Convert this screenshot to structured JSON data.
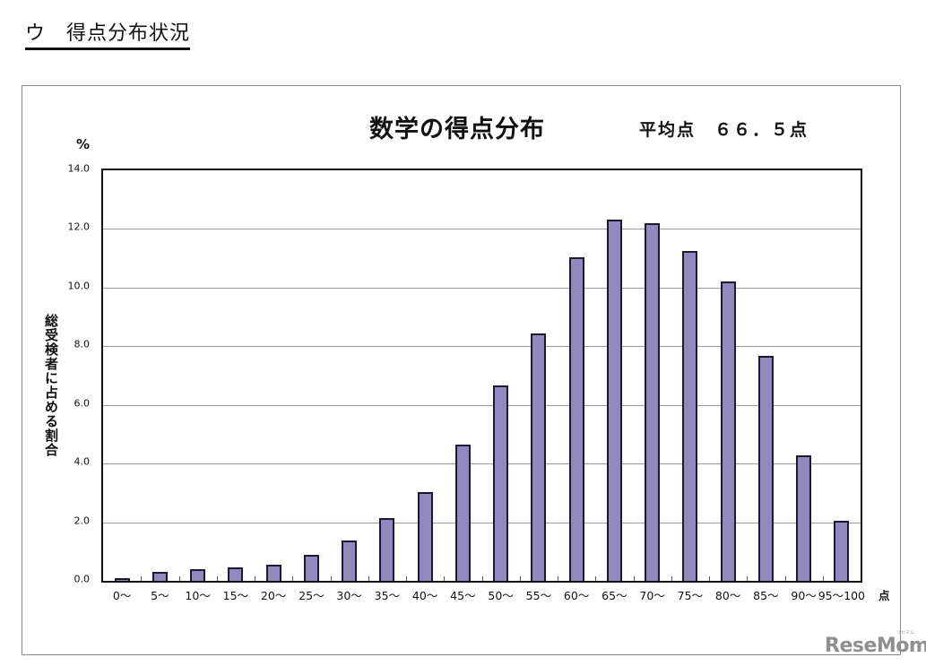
{
  "section_title": "ウ　得点分布状況",
  "watermark": "ReseMom",
  "watermark_sub": "リセマム",
  "chart_data": {
    "type": "bar",
    "title": "数学の得点分布",
    "subtitle": "平均点　６６．５点",
    "xlabel": "点",
    "ylabel": "総受検者に占める割合",
    "y_unit": "%",
    "ylim": [
      0,
      14
    ],
    "yticks": [
      "0.0",
      "2.0",
      "4.0",
      "6.0",
      "8.0",
      "10.0",
      "12.0",
      "14.0"
    ],
    "grid": true,
    "legend": null,
    "categories": [
      "0～",
      "5～",
      "10～",
      "15～",
      "20～",
      "25～",
      "30～",
      "35～",
      "40～",
      "45～",
      "50～",
      "55～",
      "60～",
      "65～",
      "70～",
      "75～",
      "80～",
      "85～",
      "90～",
      "95～100"
    ],
    "values": [
      0.1,
      0.3,
      0.4,
      0.45,
      0.56,
      0.89,
      1.37,
      2.15,
      3.04,
      4.64,
      6.66,
      8.44,
      11.05,
      12.31,
      12.21,
      11.25,
      10.21,
      7.67,
      4.27,
      2.05
    ],
    "colors": {
      "bar_fill": "#9088be",
      "bar_border": "#1c1a2e",
      "grid": "#9a9a9a",
      "axis": "#111111"
    }
  }
}
